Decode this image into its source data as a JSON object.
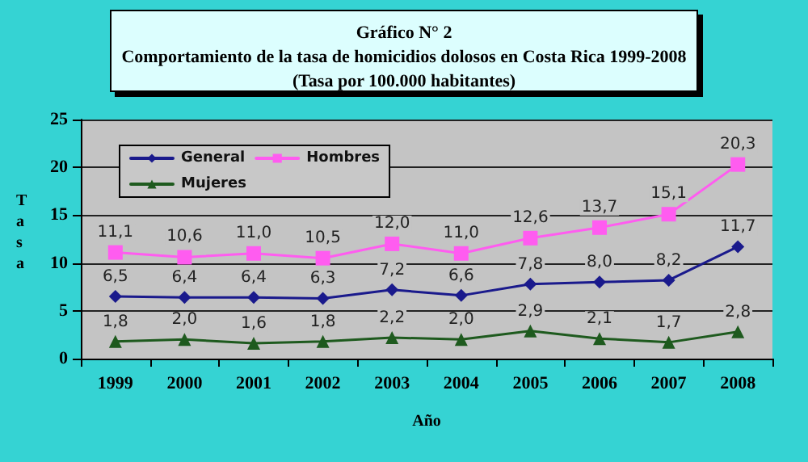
{
  "chart_data": {
    "type": "line",
    "title": "Gráfico N° 2",
    "subtitle": "Comportamiento de la tasa de homicidios dolosos en Costa Rica 1999-2008",
    "annotations": [
      "(Tasa por 100.000 habitantes)"
    ],
    "xlabel": "Año",
    "ylabel": "Tasa",
    "categories": [
      "1999",
      "2000",
      "2001",
      "2002",
      "2003",
      "2004",
      "2005",
      "2006",
      "2007",
      "2008"
    ],
    "series": [
      {
        "name": "General",
        "color": "#1a1a8c",
        "marker": "diamond",
        "values": [
          6.5,
          6.4,
          6.4,
          6.3,
          7.2,
          6.6,
          7.8,
          8.0,
          8.2,
          11.7
        ],
        "value_labels": [
          "6,5",
          "6,4",
          "6,4",
          "6,3",
          "7,2",
          "6,6",
          "7,8",
          "8,0",
          "8,2",
          "11,7"
        ]
      },
      {
        "name": "Hombres",
        "color": "#ff5cf0",
        "marker": "square",
        "values": [
          11.1,
          10.6,
          11.0,
          10.5,
          12.0,
          11.0,
          12.6,
          13.7,
          15.1,
          20.3
        ],
        "value_labels": [
          "11,1",
          "10,6",
          "11,0",
          "10,5",
          "12,0",
          "11,0",
          "12,6",
          "13,7",
          "15,1",
          "20,3"
        ]
      },
      {
        "name": "Mujeres",
        "color": "#1e5a1e",
        "marker": "triangle",
        "values": [
          1.8,
          2.0,
          1.6,
          1.8,
          2.2,
          2.0,
          2.9,
          2.1,
          1.7,
          2.8
        ],
        "value_labels": [
          "1,8",
          "2,0",
          "1,6",
          "1,8",
          "2,2",
          "2,0",
          "2,9",
          "2,1",
          "1,7",
          "2,8"
        ]
      }
    ],
    "ylim": [
      0,
      25
    ],
    "yticks": [
      0,
      5,
      10,
      15,
      20,
      25
    ],
    "grid": "y",
    "legend": "top left",
    "line_style": "solid"
  }
}
